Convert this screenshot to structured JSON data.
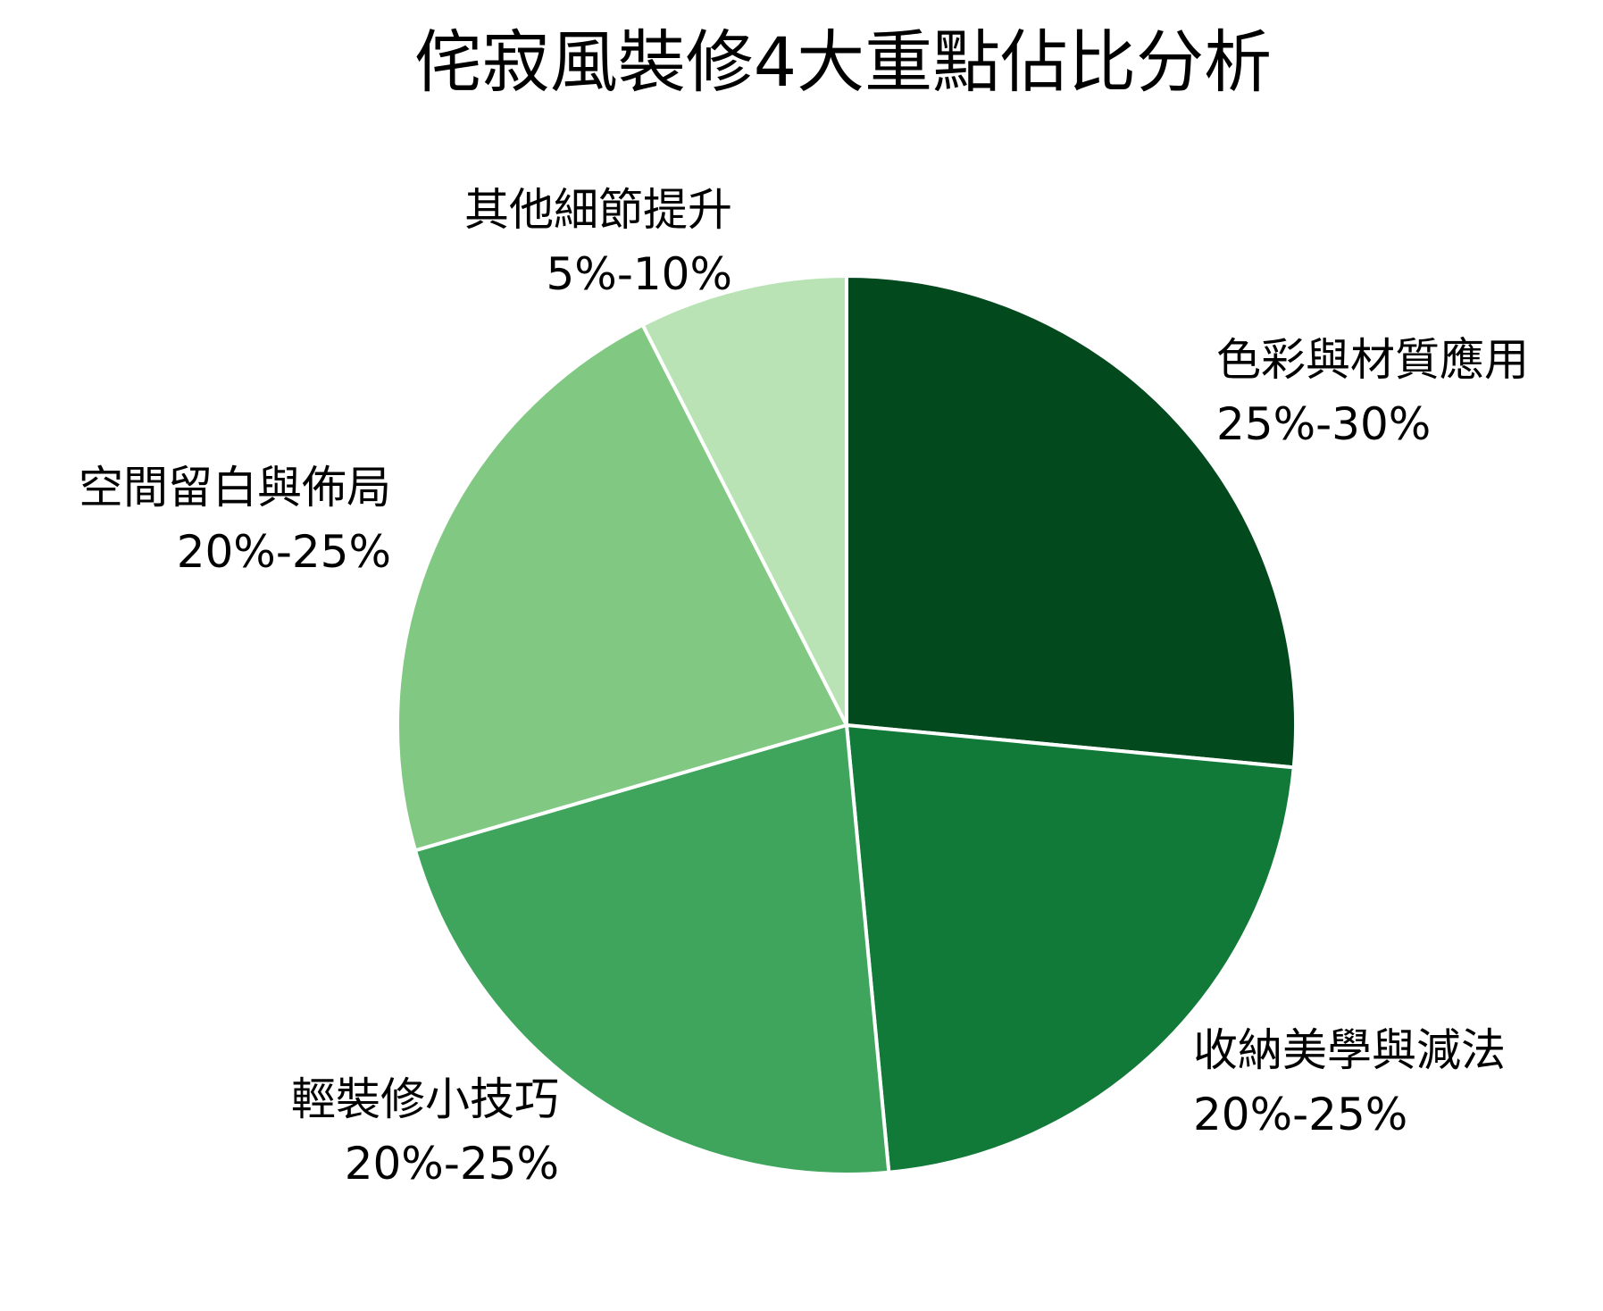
{
  "chart_data": {
    "type": "pie",
    "title": "侘寂風裝修4大重點佔比分析",
    "slices": [
      {
        "label": "色彩與材質應用",
        "range": "25%-30%",
        "value": 26.5,
        "color": "#02491e"
      },
      {
        "label": "收納美學與減法",
        "range": "20%-25%",
        "value": 22.0,
        "color": "#117a38"
      },
      {
        "label": "輕裝修小技巧",
        "range": "20%-25%",
        "value": 22.0,
        "color": "#3fa45c"
      },
      {
        "label": "空間留白與佈局",
        "range": "20%-25%",
        "value": 22.0,
        "color": "#81c882"
      },
      {
        "label": "其他細節提升",
        "range": "5%-10%",
        "value": 7.5,
        "color": "#b9e3b5"
      }
    ]
  }
}
